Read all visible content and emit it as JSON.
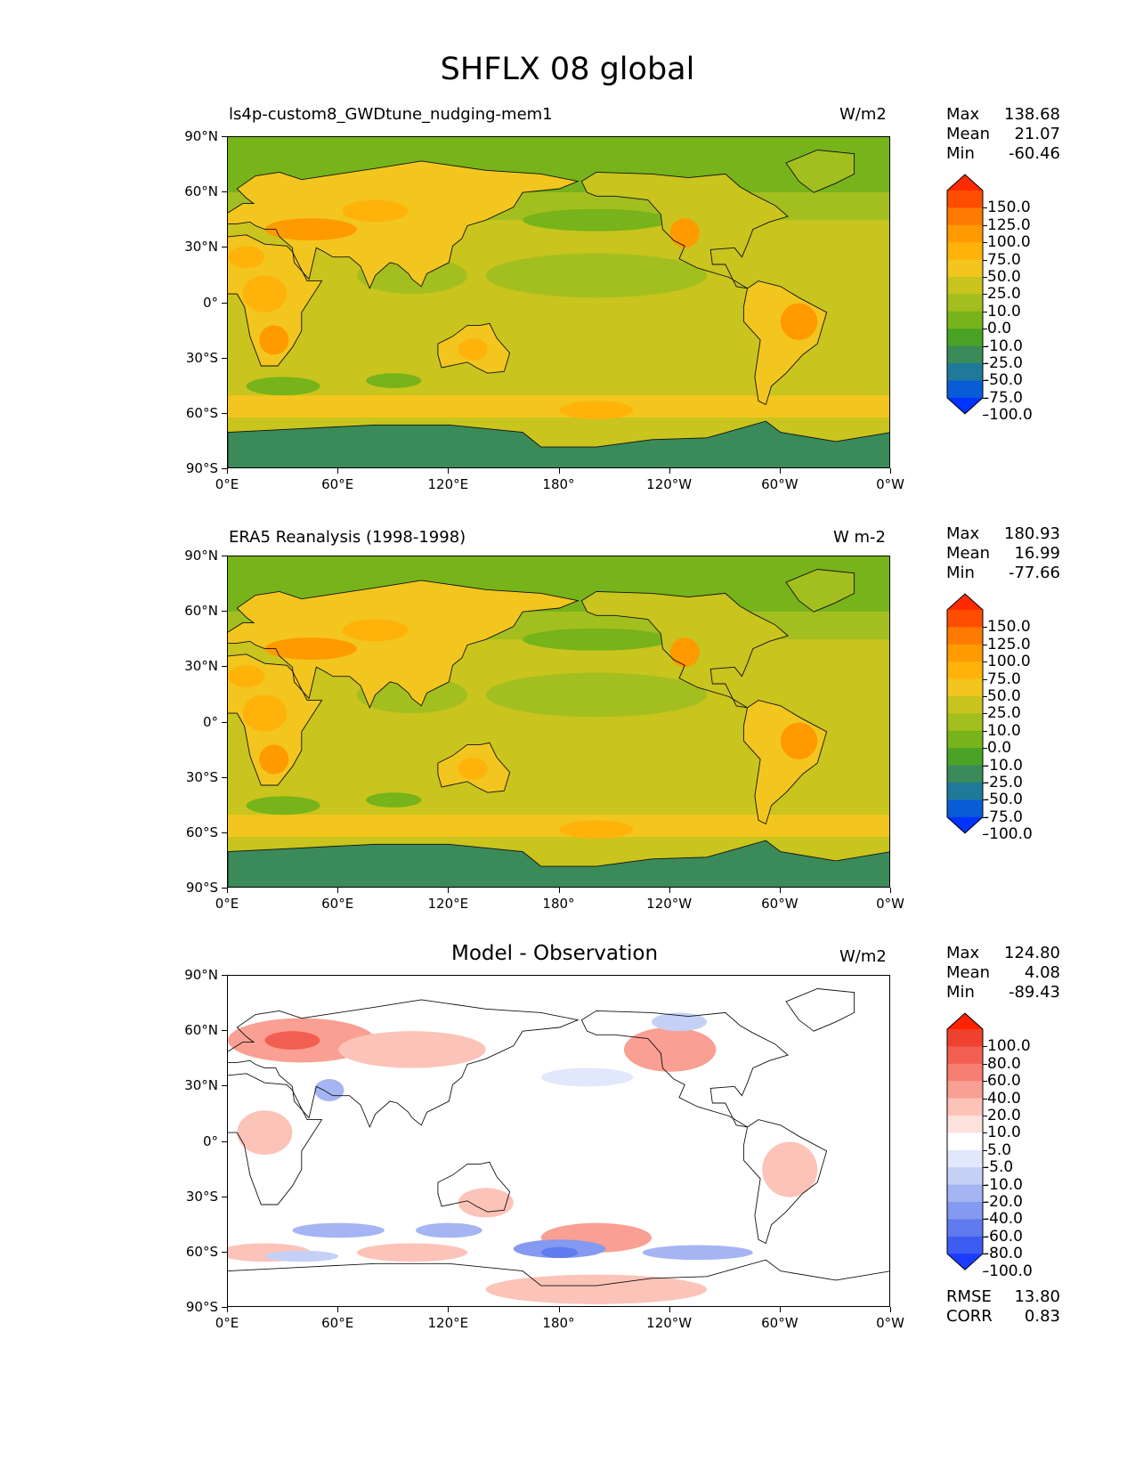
{
  "title": "SHFLX 08 global",
  "x_ticks": [
    "0°E",
    "60°E",
    "120°E",
    "180°",
    "120°W",
    "60°W",
    "0°W"
  ],
  "y_ticks": [
    "90°N",
    "60°N",
    "30°N",
    "0°",
    "30°S",
    "60°S",
    "90°S"
  ],
  "panels": [
    {
      "title": "ls4p-custom8_GWDtune_nudging-mem1",
      "units": "W/m2",
      "stats": [
        {
          "label": "Max",
          "value": "138.68"
        },
        {
          "label": "Mean",
          "value": "21.07"
        },
        {
          "label": "Min",
          "value": "-60.46"
        }
      ],
      "colorbar": {
        "labels": [
          "150.0",
          "125.0",
          "100.0",
          "75.0",
          "50.0",
          "25.0",
          "10.0",
          "0.0",
          "-10.0",
          "-25.0",
          "-50.0",
          "-75.0",
          "-100.0"
        ],
        "colors": [
          "#ff2a00",
          "#ff4d00",
          "#ff7a00",
          "#ff9a00",
          "#ffb30a",
          "#f2c61e",
          "#c9c41e",
          "#a3bf1f",
          "#77b31a",
          "#4aa326",
          "#3a8a5a",
          "#1f7a9a",
          "#0a5cd6",
          "#0033ff"
        ]
      }
    },
    {
      "title": "ERA5 Reanalysis (1998-1998)",
      "units": "W m-2",
      "stats": [
        {
          "label": "Max",
          "value": "180.93"
        },
        {
          "label": "Mean",
          "value": "16.99"
        },
        {
          "label": "Min",
          "value": "-77.66"
        }
      ],
      "colorbar": {
        "labels": [
          "150.0",
          "125.0",
          "100.0",
          "75.0",
          "50.0",
          "25.0",
          "10.0",
          "0.0",
          "-10.0",
          "-25.0",
          "-50.0",
          "-75.0",
          "-100.0"
        ],
        "colors": [
          "#ff2a00",
          "#ff4d00",
          "#ff7a00",
          "#ff9a00",
          "#ffb30a",
          "#f2c61e",
          "#c9c41e",
          "#a3bf1f",
          "#77b31a",
          "#4aa326",
          "#3a8a5a",
          "#1f7a9a",
          "#0a5cd6",
          "#0033ff"
        ]
      }
    },
    {
      "title": "Model - Observation",
      "units": "W/m2",
      "stats": [
        {
          "label": "Max",
          "value": "124.80"
        },
        {
          "label": "Mean",
          "value": "4.08"
        },
        {
          "label": "Min",
          "value": "-89.43"
        }
      ],
      "colorbar": {
        "labels": [
          "100.0",
          "80.0",
          "60.0",
          "40.0",
          "20.0",
          "10.0",
          "5.0",
          "-5.0",
          "-10.0",
          "-20.0",
          "-40.0",
          "-60.0",
          "-80.0",
          "-100.0"
        ],
        "colors": [
          "#ff2200",
          "#f0402e",
          "#f25f52",
          "#f77e72",
          "#fa9f93",
          "#fcc3b9",
          "#fde1dc",
          "#ffffff",
          "#e2e8fb",
          "#c5d0f7",
          "#a5b5f3",
          "#8499f0",
          "#607bf0",
          "#3d5cf2",
          "#1a3cff"
        ]
      },
      "metrics": [
        {
          "label": "RMSE",
          "value": "13.80"
        },
        {
          "label": "CORR",
          "value": "0.83"
        }
      ]
    }
  ]
}
